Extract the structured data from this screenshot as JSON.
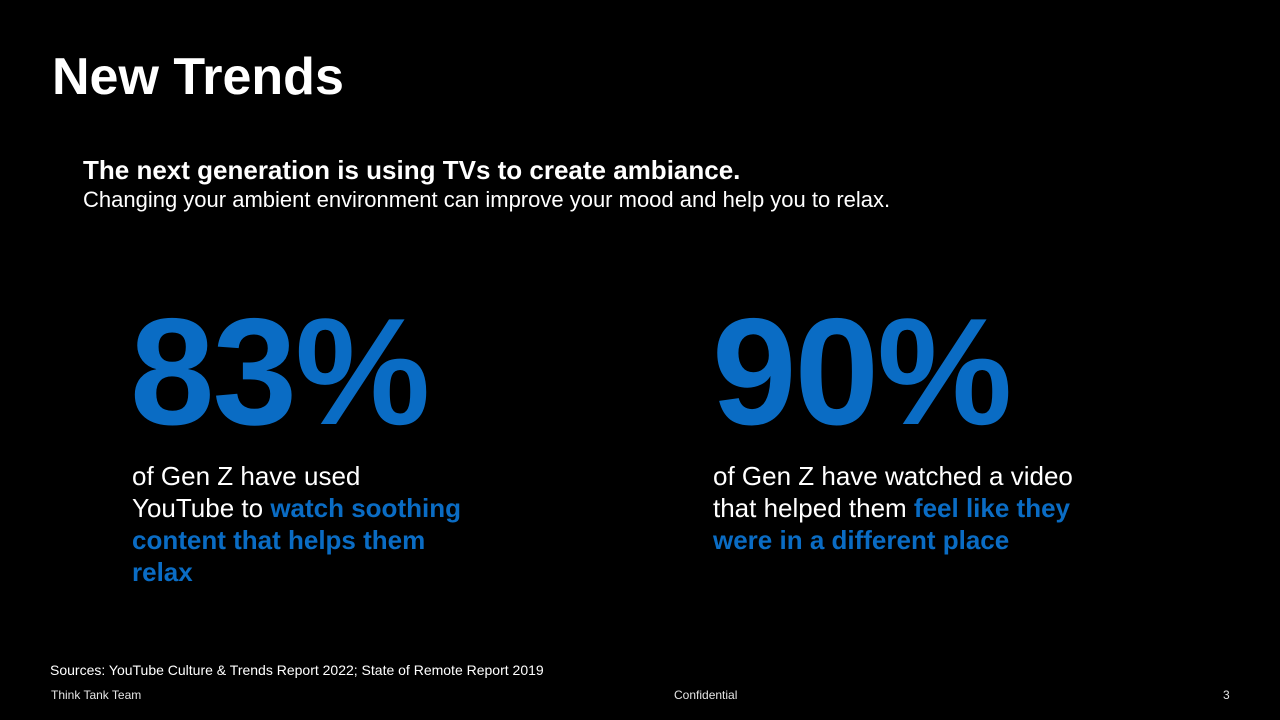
{
  "slide": {
    "title": "New Trends",
    "headline": "The next generation is using TVs to create ambiance.",
    "subline": "Changing your ambient environment can improve your mood and help you to relax."
  },
  "stats": [
    {
      "number": "83%",
      "line1": "of Gen Z have used",
      "line2_plain": "YouTube to ",
      "highlight": "watch soothing content that helps them relax"
    },
    {
      "number": "90%",
      "line1": "of Gen Z have watched a video",
      "line2_plain": "that helped them ",
      "highlight": "feel like they were in a different place"
    }
  ],
  "sources": "Sources: YouTube Culture & Trends Report 2022; State of Remote Report 2019",
  "footer": {
    "left": "Think Tank Team",
    "center": "Confidential",
    "page_number": "3"
  },
  "colors": {
    "background": "#000000",
    "accent": "#0a6cc4",
    "text": "#ffffff"
  }
}
